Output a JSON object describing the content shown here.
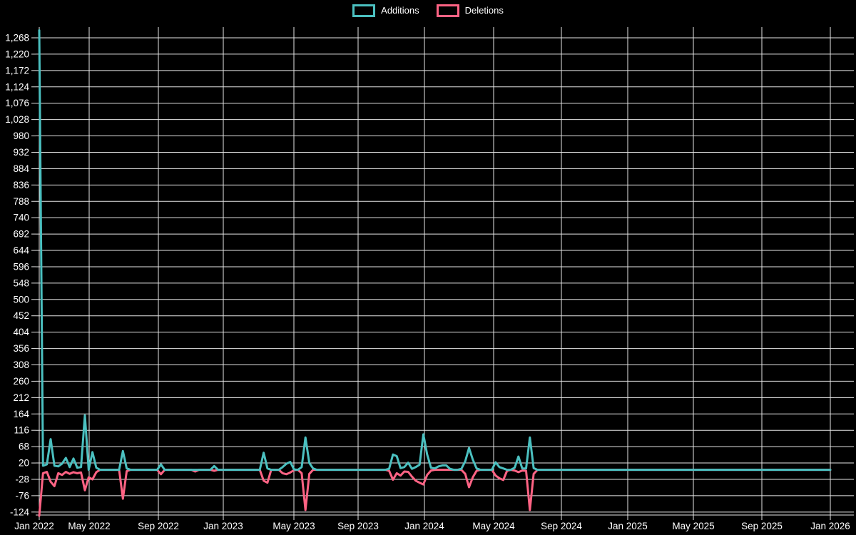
{
  "chart_data": {
    "type": "line",
    "title": "",
    "background_color": "#000000",
    "grid_color": "#e6e6e6",
    "text_color": "#ffffff",
    "grid": true,
    "legend_position": "top-center",
    "x_axis": {
      "granularity": "weekly",
      "range_label": "Jan 2022 to Jan 2026",
      "weeks_total": 209,
      "tick_labels": [
        "Jan 2022",
        "May 2022",
        "Sep 2022",
        "Jan 2023",
        "May 2023",
        "Sep 2023",
        "Jan 2024",
        "May 2024",
        "Sep 2024",
        "Jan 2025",
        "May 2025",
        "Sep 2025",
        "Jan 2026"
      ]
    },
    "y_axis": {
      "step": 48,
      "tick_values": [
        1268,
        1220,
        1172,
        1124,
        1076,
        1028,
        980,
        932,
        884,
        836,
        788,
        740,
        692,
        644,
        596,
        548,
        500,
        452,
        404,
        356,
        308,
        260,
        212,
        164,
        116,
        68,
        20,
        -28,
        -76,
        -124
      ],
      "tick_labels": [
        "1,268",
        "1,220",
        "1,172",
        "1,124",
        "1,076",
        "1,028",
        "980",
        "932",
        "884",
        "836",
        "788",
        "740",
        "692",
        "644",
        "596",
        "548",
        "500",
        "452",
        "404",
        "356",
        "308",
        "260",
        "212",
        "164",
        "116",
        "68",
        "20",
        "-28",
        "-76",
        "-124"
      ]
    },
    "series": [
      {
        "name": "Additions",
        "color": "#4bc0c0",
        "baseline": 0,
        "points_format": "[week_index_from_Jan_2022, value]",
        "points": [
          [
            0,
            1290
          ],
          [
            1,
            12
          ],
          [
            2,
            16
          ],
          [
            3,
            90
          ],
          [
            4,
            12
          ],
          [
            5,
            10
          ],
          [
            6,
            18
          ],
          [
            7,
            35
          ],
          [
            8,
            8
          ],
          [
            9,
            33
          ],
          [
            10,
            6
          ],
          [
            11,
            8
          ],
          [
            12,
            160
          ],
          [
            13,
            0
          ],
          [
            14,
            52
          ],
          [
            15,
            6
          ],
          [
            22,
            55
          ],
          [
            23,
            4
          ],
          [
            32,
            16
          ],
          [
            46,
            11
          ],
          [
            59,
            50
          ],
          [
            60,
            4
          ],
          [
            64,
            8
          ],
          [
            65,
            18
          ],
          [
            66,
            23
          ],
          [
            67,
            1
          ],
          [
            69,
            8
          ],
          [
            70,
            95
          ],
          [
            71,
            20
          ],
          [
            72,
            4
          ],
          [
            92,
            3
          ],
          [
            93,
            45
          ],
          [
            94,
            40
          ],
          [
            95,
            5
          ],
          [
            96,
            8
          ],
          [
            97,
            21
          ],
          [
            98,
            3
          ],
          [
            99,
            8
          ],
          [
            100,
            15
          ],
          [
            101,
            104
          ],
          [
            102,
            45
          ],
          [
            103,
            6
          ],
          [
            104,
            4
          ],
          [
            105,
            10
          ],
          [
            106,
            13
          ],
          [
            107,
            13
          ],
          [
            108,
            3
          ],
          [
            111,
            3
          ],
          [
            112,
            25
          ],
          [
            113,
            64
          ],
          [
            114,
            30
          ],
          [
            115,
            4
          ],
          [
            120,
            22
          ],
          [
            121,
            8
          ],
          [
            122,
            4
          ],
          [
            125,
            6
          ],
          [
            126,
            39
          ],
          [
            127,
            4
          ],
          [
            128,
            4
          ],
          [
            129,
            95
          ],
          [
            130,
            5
          ]
        ]
      },
      {
        "name": "Deletions",
        "color": "#ff6384",
        "baseline": 0,
        "points_format": "[week_index_from_Jan_2022, value]",
        "points": [
          [
            0,
            -135
          ],
          [
            1,
            -10
          ],
          [
            2,
            -6
          ],
          [
            3,
            -35
          ],
          [
            4,
            -48
          ],
          [
            5,
            -10
          ],
          [
            6,
            -15
          ],
          [
            7,
            -6
          ],
          [
            8,
            -12
          ],
          [
            9,
            -7
          ],
          [
            10,
            -10
          ],
          [
            11,
            -8
          ],
          [
            12,
            -60
          ],
          [
            13,
            -22
          ],
          [
            14,
            -28
          ],
          [
            15,
            -7
          ],
          [
            22,
            -85
          ],
          [
            23,
            -4
          ],
          [
            32,
            -13
          ],
          [
            41,
            -5
          ],
          [
            46,
            -3
          ],
          [
            59,
            -32
          ],
          [
            60,
            -38
          ],
          [
            64,
            -10
          ],
          [
            65,
            -13
          ],
          [
            66,
            -8
          ],
          [
            67,
            -1
          ],
          [
            69,
            -10
          ],
          [
            70,
            -118
          ],
          [
            71,
            -12
          ],
          [
            92,
            -3
          ],
          [
            93,
            -29
          ],
          [
            94,
            -10
          ],
          [
            95,
            -17
          ],
          [
            96,
            -5
          ],
          [
            97,
            -6
          ],
          [
            98,
            -20
          ],
          [
            99,
            -32
          ],
          [
            100,
            -38
          ],
          [
            101,
            -43
          ],
          [
            102,
            -15
          ],
          [
            103,
            -2
          ],
          [
            112,
            -12
          ],
          [
            113,
            -51
          ],
          [
            114,
            -22
          ],
          [
            115,
            -3
          ],
          [
            120,
            -17
          ],
          [
            121,
            -25
          ],
          [
            122,
            -30
          ],
          [
            123,
            -3
          ],
          [
            125,
            -2
          ],
          [
            126,
            -7
          ],
          [
            127,
            -2
          ],
          [
            128,
            -3
          ],
          [
            129,
            -118
          ],
          [
            130,
            -12
          ]
        ]
      }
    ]
  }
}
